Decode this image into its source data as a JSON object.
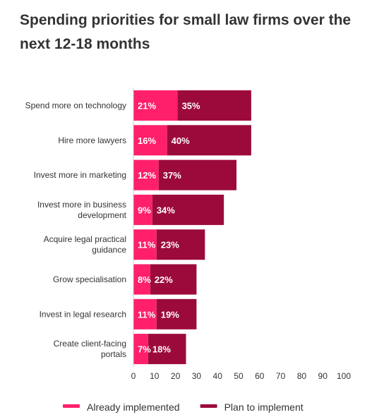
{
  "chart_data": {
    "type": "bar",
    "orientation": "horizontal",
    "stacked": true,
    "title": "Spending priorities for small law firms over the next 12-18 months",
    "categories": [
      "Spend more on technology",
      "Hire more lawyers",
      "Invest more in marketing",
      "Invest more in business development",
      "Acquire legal practical guidance",
      "Grow specialisation",
      "Invest in legal research",
      "Create client-facing portals"
    ],
    "series": [
      {
        "name": "Already implemented",
        "color": "#ff1f6a",
        "values": [
          21,
          16,
          12,
          9,
          11,
          8,
          11,
          7
        ],
        "labels": [
          "21%",
          "16%",
          "12%",
          "9%",
          "11%",
          "8%",
          "11%",
          "7%"
        ]
      },
      {
        "name": "Plan to implement",
        "color": "#9c0a3c",
        "values": [
          35,
          40,
          37,
          34,
          23,
          22,
          19,
          18
        ],
        "labels": [
          "35%",
          "40%",
          "37%",
          "34%",
          "23%",
          "22%",
          "19%",
          "18%"
        ]
      }
    ],
    "xlim": [
      0,
      100
    ],
    "xticks": [
      "0",
      "10",
      "20",
      "30",
      "40",
      "50",
      "60",
      "70",
      "80",
      "90",
      "100"
    ],
    "grid": false,
    "legend": "bottom"
  }
}
